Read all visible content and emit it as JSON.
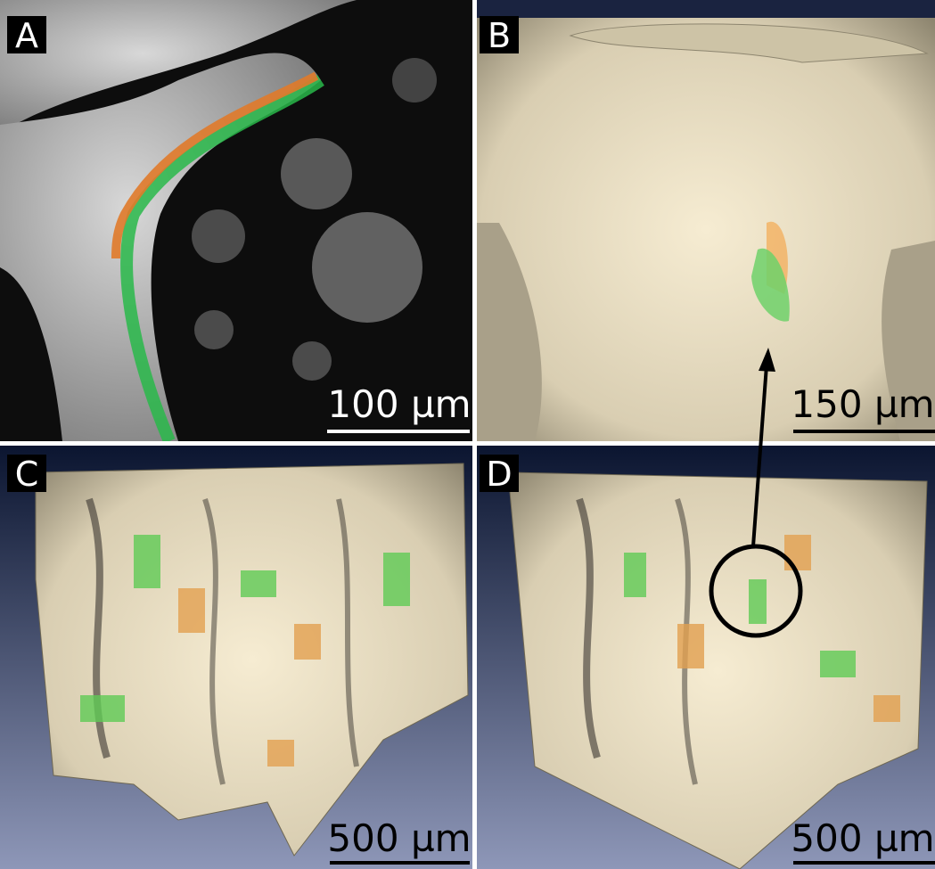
{
  "panels": [
    {
      "label": "A",
      "scale_bar": "100 µm"
    },
    {
      "label": "B",
      "scale_bar": "150 µm"
    },
    {
      "label": "C",
      "scale_bar": "500 µm"
    },
    {
      "label": "D",
      "scale_bar": "500 µm"
    }
  ]
}
